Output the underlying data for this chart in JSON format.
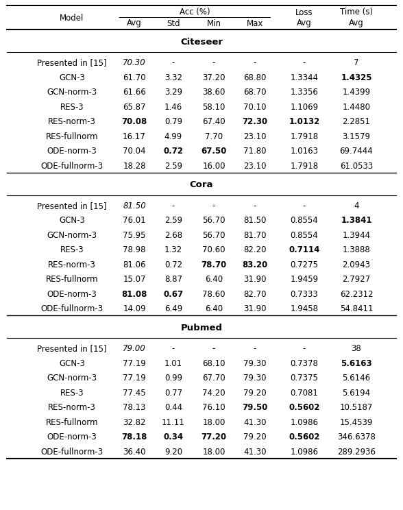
{
  "sections": [
    {
      "name": "Citeseer",
      "rows": [
        {
          "model": "Presented in [15]",
          "avg": "70.30",
          "std": "-",
          "min": "-",
          "max": "-",
          "loss": "-",
          "time": "7",
          "italic_avg": true,
          "bold": []
        },
        {
          "model": "GCN-3",
          "avg": "61.70",
          "std": "3.32",
          "min": "37.20",
          "max": "68.80",
          "loss": "1.3344",
          "time": "1.4325",
          "italic_avg": false,
          "bold": [
            "time"
          ]
        },
        {
          "model": "GCN-norm-3",
          "avg": "61.66",
          "std": "3.29",
          "min": "38.60",
          "max": "68.70",
          "loss": "1.3356",
          "time": "1.4399",
          "italic_avg": false,
          "bold": []
        },
        {
          "model": "RES-3",
          "avg": "65.87",
          "std": "1.46",
          "min": "58.10",
          "max": "70.10",
          "loss": "1.1069",
          "time": "1.4480",
          "italic_avg": false,
          "bold": []
        },
        {
          "model": "RES-norm-3",
          "avg": "70.08",
          "std": "0.79",
          "min": "67.40",
          "max": "72.30",
          "loss": "1.0132",
          "time": "2.2851",
          "italic_avg": false,
          "bold": [
            "avg",
            "max",
            "loss"
          ]
        },
        {
          "model": "RES-fullnorm",
          "avg": "16.17",
          "std": "4.99",
          "min": "7.70",
          "max": "23.10",
          "loss": "1.7918",
          "time": "3.1579",
          "italic_avg": false,
          "bold": []
        },
        {
          "model": "ODE-norm-3",
          "avg": "70.04",
          "std": "0.72",
          "min": "67.50",
          "max": "71.80",
          "loss": "1.0163",
          "time": "69.7444",
          "italic_avg": false,
          "bold": [
            "std",
            "min"
          ]
        },
        {
          "model": "ODE-fullnorm-3",
          "avg": "18.28",
          "std": "2.59",
          "min": "16.00",
          "max": "23.10",
          "loss": "1.7918",
          "time": "61.0533",
          "italic_avg": false,
          "bold": []
        }
      ]
    },
    {
      "name": "Cora",
      "rows": [
        {
          "model": "Presented in [15]",
          "avg": "81.50",
          "std": "-",
          "min": "-",
          "max": "-",
          "loss": "-",
          "time": "4",
          "italic_avg": true,
          "bold": []
        },
        {
          "model": "GCN-3",
          "avg": "76.01",
          "std": "2.59",
          "min": "56.70",
          "max": "81.50",
          "loss": "0.8554",
          "time": "1.3841",
          "italic_avg": false,
          "bold": [
            "time"
          ]
        },
        {
          "model": "GCN-norm-3",
          "avg": "75.95",
          "std": "2.68",
          "min": "56.70",
          "max": "81.70",
          "loss": "0.8554",
          "time": "1.3944",
          "italic_avg": false,
          "bold": []
        },
        {
          "model": "RES-3",
          "avg": "78.98",
          "std": "1.32",
          "min": "70.60",
          "max": "82.20",
          "loss": "0.7114",
          "time": "1.3888",
          "italic_avg": false,
          "bold": [
            "loss"
          ]
        },
        {
          "model": "RES-norm-3",
          "avg": "81.06",
          "std": "0.72",
          "min": "78.70",
          "max": "83.20",
          "loss": "0.7275",
          "time": "2.0943",
          "italic_avg": false,
          "bold": [
            "min",
            "max"
          ]
        },
        {
          "model": "RES-fullnorm",
          "avg": "15.07",
          "std": "8.87",
          "min": "6.40",
          "max": "31.90",
          "loss": "1.9459",
          "time": "2.7927",
          "italic_avg": false,
          "bold": []
        },
        {
          "model": "ODE-norm-3",
          "avg": "81.08",
          "std": "0.67",
          "min": "78.60",
          "max": "82.70",
          "loss": "0.7333",
          "time": "62.2312",
          "italic_avg": false,
          "bold": [
            "avg",
            "std"
          ]
        },
        {
          "model": "ODE-fullnorm-3",
          "avg": "14.09",
          "std": "6.49",
          "min": "6.40",
          "max": "31.90",
          "loss": "1.9458",
          "time": "54.8411",
          "italic_avg": false,
          "bold": []
        }
      ]
    },
    {
      "name": "Pubmed",
      "rows": [
        {
          "model": "Presented in [15]",
          "avg": "79.00",
          "std": "-",
          "min": "-",
          "max": "-",
          "loss": "-",
          "time": "38",
          "italic_avg": true,
          "bold": []
        },
        {
          "model": "GCN-3",
          "avg": "77.19",
          "std": "1.01",
          "min": "68.10",
          "max": "79.30",
          "loss": "0.7378",
          "time": "5.6163",
          "italic_avg": false,
          "bold": [
            "time"
          ]
        },
        {
          "model": "GCN-norm-3",
          "avg": "77.19",
          "std": "0.99",
          "min": "67.70",
          "max": "79.30",
          "loss": "0.7375",
          "time": "5.6146",
          "italic_avg": false,
          "bold": []
        },
        {
          "model": "RES-3",
          "avg": "77.45",
          "std": "0.77",
          "min": "74.20",
          "max": "79.20",
          "loss": "0.7081",
          "time": "5.6194",
          "italic_avg": false,
          "bold": []
        },
        {
          "model": "RES-norm-3",
          "avg": "78.13",
          "std": "0.44",
          "min": "76.10",
          "max": "79.50",
          "loss": "0.5602",
          "time": "10.5187",
          "italic_avg": false,
          "bold": [
            "max",
            "loss"
          ]
        },
        {
          "model": "RES-fullnorm",
          "avg": "32.82",
          "std": "11.11",
          "min": "18.00",
          "max": "41.30",
          "loss": "1.0986",
          "time": "15.4539",
          "italic_avg": false,
          "bold": []
        },
        {
          "model": "ODE-norm-3",
          "avg": "78.18",
          "std": "0.34",
          "min": "77.20",
          "max": "79.20",
          "loss": "0.5602",
          "time": "346.6378",
          "italic_avg": false,
          "bold": [
            "avg",
            "std",
            "min",
            "loss"
          ]
        },
        {
          "model": "ODE-fullnorm-3",
          "avg": "36.40",
          "std": "9.20",
          "min": "18.00",
          "max": "41.30",
          "loss": "1.0986",
          "time": "289.2936",
          "italic_avg": false,
          "bold": []
        }
      ]
    }
  ],
  "font_size": 8.5,
  "bg_color": "#ffffff"
}
